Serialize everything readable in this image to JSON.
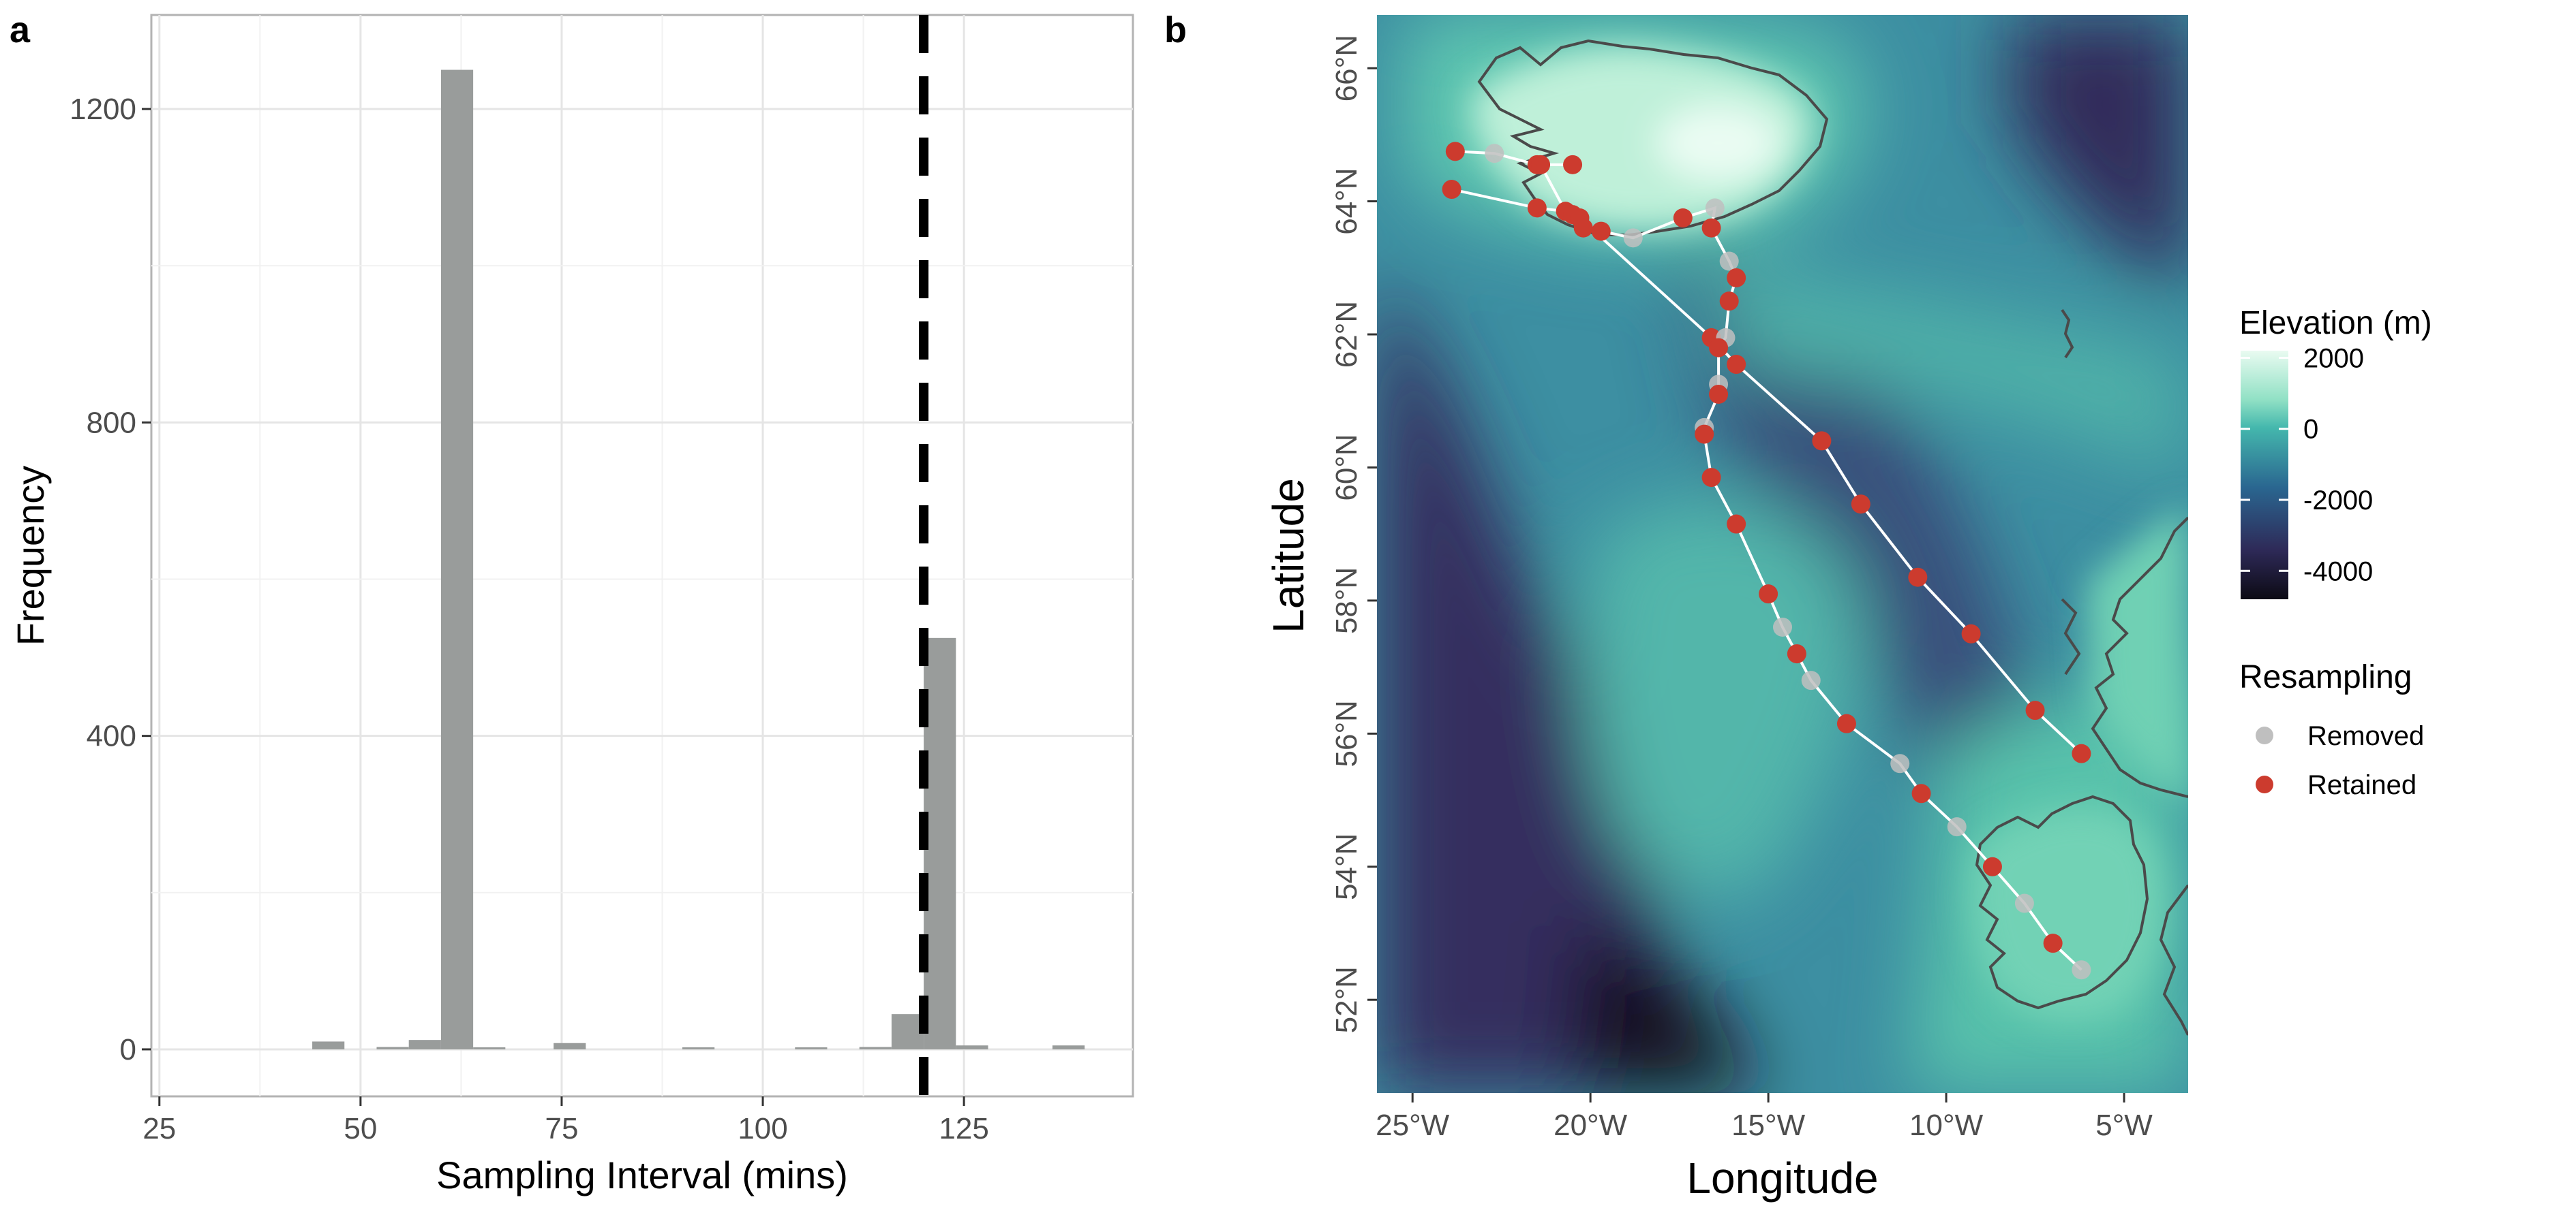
{
  "panels": {
    "a": "a",
    "b": "b"
  },
  "chart_data": [
    {
      "type": "bar",
      "panel": "a",
      "xlabel": "Sampling Interval (mins)",
      "ylabel": "Frequency",
      "xlim": [
        24,
        146
      ],
      "ylim": [
        -60,
        1320
      ],
      "xticks": [
        25,
        50,
        75,
        100,
        125
      ],
      "yticks": [
        0,
        400,
        800,
        1200
      ],
      "grid": true,
      "bar_color": "#999c9b",
      "bin_width": 4,
      "bars": [
        {
          "x": 46,
          "value": 10
        },
        {
          "x": 54,
          "value": 3
        },
        {
          "x": 58,
          "value": 12
        },
        {
          "x": 62,
          "value": 1250
        },
        {
          "x": 66,
          "value": 2
        },
        {
          "x": 76,
          "value": 8
        },
        {
          "x": 92,
          "value": 2
        },
        {
          "x": 106,
          "value": 2
        },
        {
          "x": 114,
          "value": 3
        },
        {
          "x": 118,
          "value": 45
        },
        {
          "x": 122,
          "value": 525
        },
        {
          "x": 126,
          "value": 5
        },
        {
          "x": 138,
          "value": 5
        }
      ],
      "reference_line": {
        "x": 120,
        "style": "dashed",
        "color": "#000000"
      }
    },
    {
      "type": "scatter",
      "panel": "b",
      "xlabel": "Longitude",
      "ylabel": "Latitude",
      "xlim": [
        -26.0,
        -3.2
      ],
      "ylim": [
        50.6,
        66.8
      ],
      "xtick_labels": [
        "25°W",
        "20°W",
        "15°W",
        "10°W",
        "5°W"
      ],
      "xtick_values": [
        -25,
        -20,
        -15,
        -10,
        -5
      ],
      "ytick_labels": [
        "52°N",
        "54°N",
        "56°N",
        "58°N",
        "60°N",
        "62°N",
        "64°N",
        "66°N"
      ],
      "ytick_values": [
        52,
        54,
        56,
        58,
        60,
        62,
        64,
        66
      ],
      "fill_legend": {
        "title": "Elevation (m)",
        "labels": [
          "2000",
          "0",
          "-2000",
          "-4000"
        ],
        "values": [
          2000,
          0,
          -2000,
          -4000
        ],
        "range": [
          -4800,
          2200
        ]
      },
      "point_legend": {
        "title": "Resampling",
        "items": [
          {
            "label": "Removed",
            "color": "#bfbfbf"
          },
          {
            "label": "Retained",
            "color": "#cc3b2e"
          }
        ]
      },
      "track_color": "#ffffff",
      "points": [
        {
          "lon": -23.8,
          "lat": 64.75,
          "s": "retained"
        },
        {
          "lon": -22.7,
          "lat": 64.72,
          "s": "removed"
        },
        {
          "lon": -21.5,
          "lat": 64.55,
          "s": "retained"
        },
        {
          "lon": -21.4,
          "lat": 64.55,
          "s": "retained"
        },
        {
          "lon": -20.5,
          "lat": 64.55,
          "s": "retained"
        },
        {
          "lon": -23.9,
          "lat": 64.18,
          "s": "retained"
        },
        {
          "lon": -21.5,
          "lat": 63.9,
          "s": "retained"
        },
        {
          "lon": -20.7,
          "lat": 63.85,
          "s": "retained"
        },
        {
          "lon": -20.5,
          "lat": 63.8,
          "s": "retained"
        },
        {
          "lon": -20.3,
          "lat": 63.75,
          "s": "retained"
        },
        {
          "lon": -20.2,
          "lat": 63.6,
          "s": "retained"
        },
        {
          "lon": -19.7,
          "lat": 63.55,
          "s": "retained"
        },
        {
          "lon": -18.8,
          "lat": 63.45,
          "s": "removed"
        },
        {
          "lon": -17.4,
          "lat": 63.75,
          "s": "retained"
        },
        {
          "lon": -16.5,
          "lat": 63.9,
          "s": "removed"
        },
        {
          "lon": -16.6,
          "lat": 63.6,
          "s": "retained"
        },
        {
          "lon": -16.1,
          "lat": 63.1,
          "s": "removed"
        },
        {
          "lon": -15.9,
          "lat": 62.85,
          "s": "retained"
        },
        {
          "lon": -16.1,
          "lat": 62.5,
          "s": "retained"
        },
        {
          "lon": -16.6,
          "lat": 61.95,
          "s": "retained"
        },
        {
          "lon": -16.2,
          "lat": 61.95,
          "s": "removed"
        },
        {
          "lon": -16.4,
          "lat": 61.8,
          "s": "retained"
        },
        {
          "lon": -15.9,
          "lat": 61.55,
          "s": "retained"
        },
        {
          "lon": -16.4,
          "lat": 61.25,
          "s": "removed"
        },
        {
          "lon": -16.4,
          "lat": 61.1,
          "s": "retained"
        },
        {
          "lon": -16.8,
          "lat": 60.6,
          "s": "removed"
        },
        {
          "lon": -16.8,
          "lat": 60.5,
          "s": "retained"
        },
        {
          "lon": -16.6,
          "lat": 59.85,
          "s": "retained"
        },
        {
          "lon": -15.9,
          "lat": 59.15,
          "s": "retained"
        },
        {
          "lon": -15.0,
          "lat": 58.1,
          "s": "retained"
        },
        {
          "lon": -14.6,
          "lat": 57.6,
          "s": "removed"
        },
        {
          "lon": -14.2,
          "lat": 57.2,
          "s": "retained"
        },
        {
          "lon": -13.8,
          "lat": 56.8,
          "s": "removed"
        },
        {
          "lon": -12.8,
          "lat": 56.15,
          "s": "retained"
        },
        {
          "lon": -13.5,
          "lat": 60.4,
          "s": "retained"
        },
        {
          "lon": -12.4,
          "lat": 59.45,
          "s": "retained"
        },
        {
          "lon": -10.8,
          "lat": 58.35,
          "s": "retained"
        },
        {
          "lon": -9.3,
          "lat": 57.5,
          "s": "retained"
        },
        {
          "lon": -7.5,
          "lat": 56.35,
          "s": "retained"
        },
        {
          "lon": -6.2,
          "lat": 55.7,
          "s": "retained"
        },
        {
          "lon": -11.3,
          "lat": 55.55,
          "s": "removed"
        },
        {
          "lon": -10.7,
          "lat": 55.1,
          "s": "retained"
        },
        {
          "lon": -9.7,
          "lat": 54.6,
          "s": "removed"
        },
        {
          "lon": -8.7,
          "lat": 54.0,
          "s": "retained"
        },
        {
          "lon": -7.8,
          "lat": 53.45,
          "s": "removed"
        },
        {
          "lon": -7.0,
          "lat": 52.85,
          "s": "retained"
        },
        {
          "lon": -6.2,
          "lat": 52.45,
          "s": "removed"
        }
      ],
      "track_segments": [
        [
          [
            -23.8,
            64.75
          ],
          [
            -22.7,
            64.72
          ],
          [
            -21.5,
            64.55
          ],
          [
            -21.4,
            64.55
          ],
          [
            -20.5,
            64.55
          ]
        ],
        [
          [
            -21.4,
            64.55
          ],
          [
            -20.7,
            63.85
          ],
          [
            -20.5,
            63.8
          ],
          [
            -20.2,
            63.6
          ],
          [
            -19.7,
            63.55
          ],
          [
            -18.8,
            63.45
          ],
          [
            -17.4,
            63.75
          ],
          [
            -16.5,
            63.9
          ],
          [
            -16.6,
            63.6
          ],
          [
            -16.1,
            63.1
          ],
          [
            -15.9,
            62.85
          ],
          [
            -16.1,
            62.5
          ],
          [
            -16.2,
            61.95
          ],
          [
            -16.4,
            61.8
          ],
          [
            -16.4,
            61.25
          ],
          [
            -16.4,
            61.1
          ],
          [
            -16.8,
            60.6
          ],
          [
            -16.8,
            60.5
          ],
          [
            -16.6,
            59.85
          ],
          [
            -15.9,
            59.15
          ],
          [
            -15.0,
            58.1
          ],
          [
            -14.6,
            57.6
          ],
          [
            -14.2,
            57.2
          ],
          [
            -13.8,
            56.8
          ],
          [
            -12.8,
            56.15
          ],
          [
            -11.3,
            55.55
          ],
          [
            -10.7,
            55.1
          ],
          [
            -9.7,
            54.6
          ],
          [
            -8.7,
            54.0
          ],
          [
            -7.8,
            53.45
          ],
          [
            -7.0,
            52.85
          ],
          [
            -6.2,
            52.45
          ]
        ],
        [
          [
            -23.9,
            64.18
          ],
          [
            -21.5,
            63.9
          ],
          [
            -20.7,
            63.85
          ]
        ],
        [
          [
            -20.3,
            63.75
          ],
          [
            -16.6,
            61.95
          ],
          [
            -15.9,
            61.55
          ],
          [
            -13.5,
            60.4
          ],
          [
            -12.4,
            59.45
          ],
          [
            -10.8,
            58.35
          ],
          [
            -9.3,
            57.5
          ],
          [
            -7.5,
            56.35
          ],
          [
            -6.2,
            55.7
          ]
        ]
      ]
    }
  ]
}
